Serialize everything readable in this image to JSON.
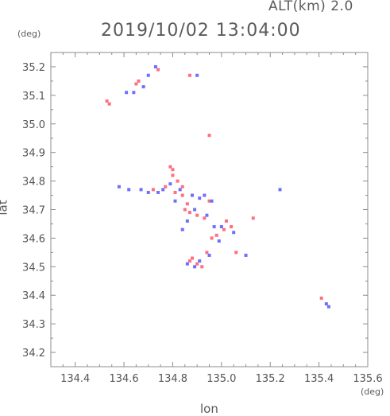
{
  "header": {
    "altitude_label": "ALT(km)",
    "altitude_value": "2.0",
    "timestamp": "2019/10/02 13:04:00"
  },
  "chart_data": {
    "type": "scatter",
    "title": "2019/10/02 13:04:00",
    "xlabel": "lon",
    "ylabel": "lat",
    "x_unit": "(deg)",
    "y_unit": "(deg)",
    "xlim": [
      134.3,
      135.6
    ],
    "ylim": [
      34.15,
      35.25
    ],
    "x_ticks": [
      "134.4",
      "134.6",
      "134.8",
      "135.0",
      "135.2",
      "135.4",
      "135.6"
    ],
    "y_ticks": [
      "34.2",
      "34.3",
      "34.4",
      "34.5",
      "34.6",
      "34.7",
      "34.8",
      "34.9",
      "35.0",
      "35.1",
      "35.2"
    ],
    "grid": false,
    "series": [
      {
        "color": "#ff6f7f",
        "points": [
          [
            134.53,
            35.08
          ],
          [
            134.54,
            35.07
          ],
          [
            134.65,
            35.14
          ],
          [
            134.66,
            35.15
          ],
          [
            134.74,
            35.19
          ],
          [
            134.87,
            35.17
          ],
          [
            134.95,
            34.96
          ],
          [
            134.79,
            34.85
          ],
          [
            134.8,
            34.84
          ],
          [
            134.8,
            34.82
          ],
          [
            134.82,
            34.8
          ],
          [
            134.77,
            34.78
          ],
          [
            134.81,
            34.76
          ],
          [
            134.84,
            34.75
          ],
          [
            134.86,
            34.72
          ],
          [
            134.85,
            34.7
          ],
          [
            134.87,
            34.69
          ],
          [
            134.9,
            34.68
          ],
          [
            134.93,
            34.67
          ],
          [
            135.02,
            34.66
          ],
          [
            135.04,
            34.64
          ],
          [
            134.96,
            34.6
          ],
          [
            135.01,
            34.63
          ],
          [
            134.98,
            34.61
          ],
          [
            135.13,
            34.67
          ],
          [
            135.06,
            34.55
          ],
          [
            134.87,
            34.52
          ],
          [
            134.9,
            34.51
          ],
          [
            134.92,
            34.5
          ],
          [
            134.88,
            34.53
          ],
          [
            134.94,
            34.55
          ],
          [
            135.41,
            34.39
          ],
          [
            134.84,
            34.78
          ],
          [
            134.72,
            34.77
          ],
          [
            134.95,
            34.73
          ]
        ]
      },
      {
        "color": "#6f6fff",
        "points": [
          [
            134.61,
            35.11
          ],
          [
            134.64,
            35.11
          ],
          [
            134.68,
            35.13
          ],
          [
            134.73,
            35.2
          ],
          [
            134.7,
            35.17
          ],
          [
            134.9,
            35.17
          ],
          [
            134.58,
            34.78
          ],
          [
            134.62,
            34.77
          ],
          [
            134.67,
            34.77
          ],
          [
            134.7,
            34.76
          ],
          [
            134.74,
            34.76
          ],
          [
            134.76,
            34.77
          ],
          [
            134.79,
            34.79
          ],
          [
            134.83,
            34.77
          ],
          [
            134.88,
            34.75
          ],
          [
            134.91,
            34.74
          ],
          [
            134.93,
            34.75
          ],
          [
            134.96,
            34.73
          ],
          [
            134.89,
            34.7
          ],
          [
            134.94,
            34.68
          ],
          [
            135.0,
            34.64
          ],
          [
            135.05,
            34.62
          ],
          [
            134.97,
            34.64
          ],
          [
            134.99,
            34.59
          ],
          [
            134.84,
            34.63
          ],
          [
            134.95,
            34.54
          ],
          [
            134.91,
            34.52
          ],
          [
            134.89,
            34.5
          ],
          [
            134.86,
            34.51
          ],
          [
            135.1,
            34.54
          ],
          [
            135.43,
            34.37
          ],
          [
            135.44,
            34.36
          ],
          [
            135.24,
            34.77
          ],
          [
            134.81,
            34.73
          ],
          [
            134.86,
            34.66
          ]
        ]
      }
    ]
  }
}
